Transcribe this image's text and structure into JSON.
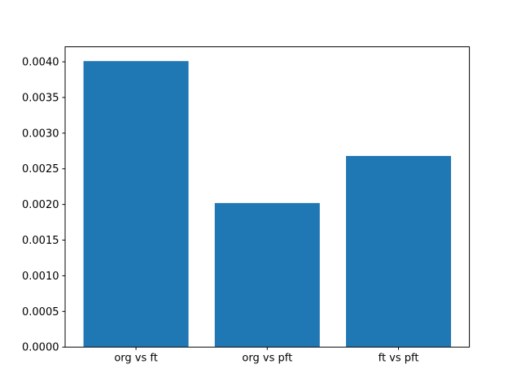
{
  "chart_data": {
    "type": "bar",
    "categories": [
      "org vs ft",
      "org vs pft",
      "ft vs pft"
    ],
    "values": [
      0.00401,
      0.00202,
      0.00268
    ],
    "title": "",
    "xlabel": "",
    "ylabel": "",
    "ylim": [
      0,
      0.0042105
    ],
    "yticks": [
      0.0,
      0.0005,
      0.001,
      0.0015,
      0.002,
      0.0025,
      0.003,
      0.0035,
      0.004
    ],
    "ytick_labels": [
      "0.0000",
      "0.0005",
      "0.0010",
      "0.0015",
      "0.0020",
      "0.0025",
      "0.0030",
      "0.0035",
      "0.0040"
    ],
    "bar_color": "#1f77b4",
    "axis_color": "#000000",
    "background_color": "#ffffff",
    "grid": false,
    "legend": false
  }
}
